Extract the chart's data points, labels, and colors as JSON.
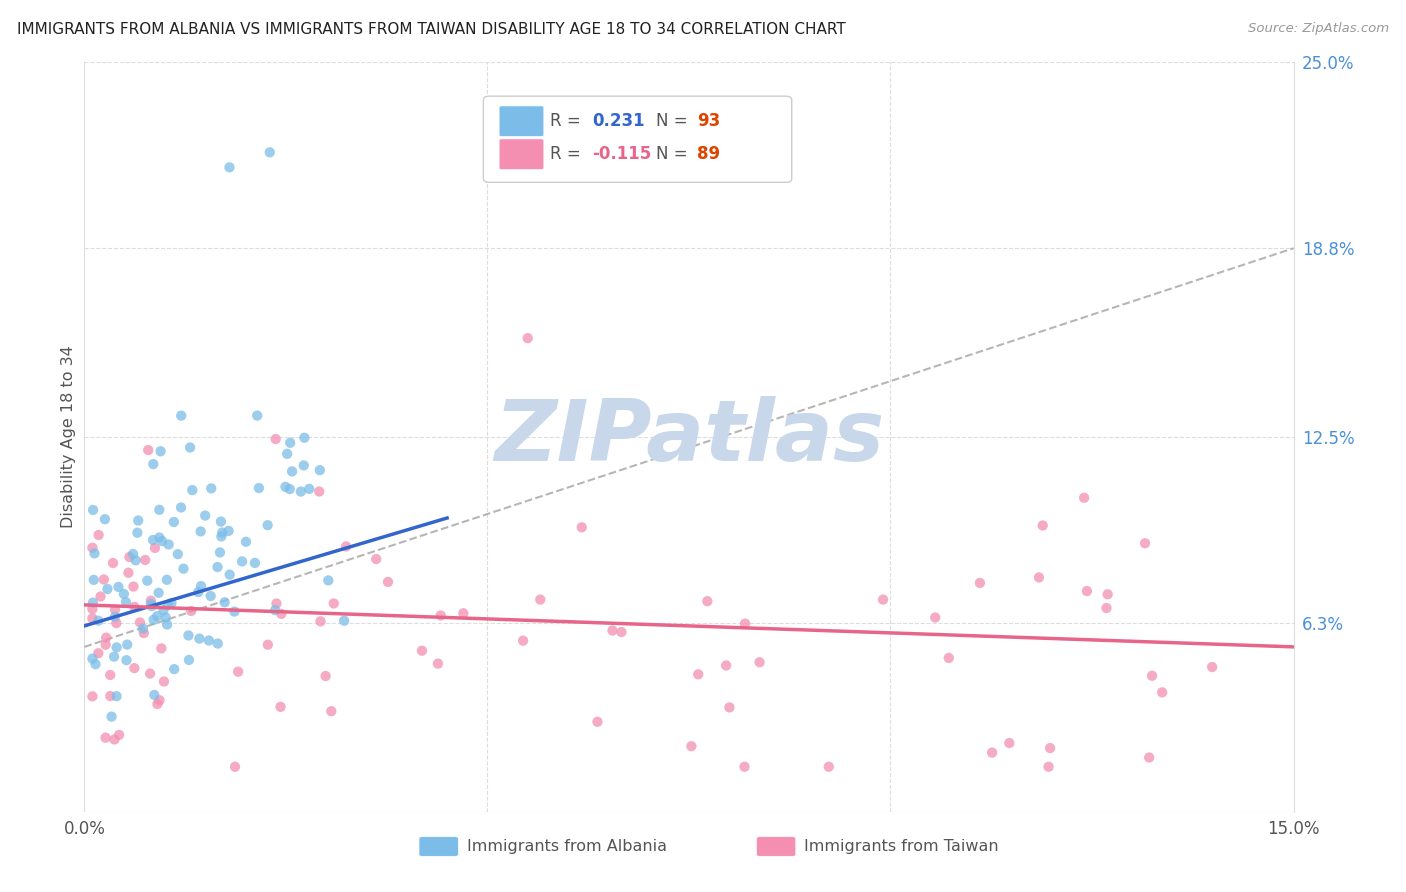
{
  "title": "IMMIGRANTS FROM ALBANIA VS IMMIGRANTS FROM TAIWAN DISABILITY AGE 18 TO 34 CORRELATION CHART",
  "source": "Source: ZipAtlas.com",
  "ylabel": "Disability Age 18 to 34",
  "xlim": [
    0.0,
    0.15
  ],
  "ylim": [
    0.0,
    0.25
  ],
  "ytick_right_labels": [
    "25.0%",
    "18.8%",
    "12.5%",
    "6.3%"
  ],
  "ytick_right_values": [
    0.25,
    0.188,
    0.125,
    0.063
  ],
  "albania_color": "#7bbde8",
  "taiwan_color": "#f48fb1",
  "trend_albania_color": "#3366cc",
  "trend_taiwan_color": "#e8658a",
  "trend_dashed_color": "#aaaaaa",
  "albania_R": 0.231,
  "albania_N": 93,
  "taiwan_R": -0.115,
  "taiwan_N": 89,
  "legend_N_color_albania": "#cc2200",
  "legend_N_color_taiwan": "#cc2200",
  "legend_R_color_albania": "#3366cc",
  "legend_R_color_taiwan": "#e8658a",
  "watermark": "ZIPatlas",
  "watermark_color": "#c8d8ea",
  "grid_color": "#dddddd",
  "trend_alb_x0": 0.0,
  "trend_alb_x1": 0.045,
  "trend_alb_y0": 0.062,
  "trend_alb_y1": 0.098,
  "trend_tai_x0": 0.0,
  "trend_tai_x1": 0.15,
  "trend_tai_y0": 0.069,
  "trend_tai_y1": 0.055,
  "trend_dash_x0": 0.0,
  "trend_dash_x1": 0.15,
  "trend_dash_y0": 0.055,
  "trend_dash_y1": 0.188
}
